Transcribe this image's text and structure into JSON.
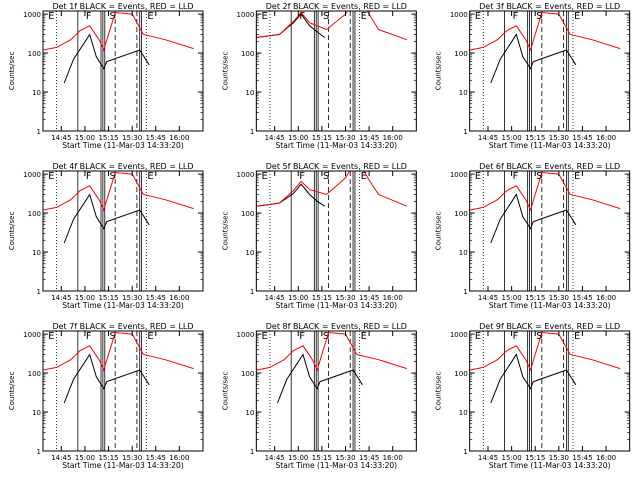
{
  "x_ticks": [
    "14:45",
    "15:00",
    "15:15",
    "15:30",
    "15:45",
    "16:00"
  ],
  "y_ticks": [
    "1",
    "10",
    "100",
    "1000"
  ],
  "ylabel": "Counts/sec",
  "xlabel": "Start Time (11-Mar-03 14:33:20)",
  "colors": {
    "events": "#000000",
    "lld": "#ff0000"
  },
  "chart_data": [
    {
      "type": "line",
      "title": "Det 1f BLACK = Events, RED = LLD",
      "markers": [
        "E",
        "F",
        "S",
        "E"
      ],
      "series": [
        {
          "name": "Events",
          "values": [
            [
              14.78,
              17
            ],
            [
              14.88,
              70
            ],
            [
              14.97,
              150
            ],
            [
              15.05,
              300
            ],
            [
              15.12,
              80
            ],
            [
              15.2,
              40
            ],
            [
              15.23,
              60
            ],
            [
              15.58,
              120
            ],
            [
              15.68,
              50
            ]
          ]
        },
        {
          "name": "LLD",
          "values": [
            [
              14.56,
              120
            ],
            [
              14.7,
              140
            ],
            [
              14.85,
              220
            ],
            [
              14.95,
              380
            ],
            [
              15.05,
              500
            ],
            [
              15.15,
              220
            ],
            [
              15.2,
              120
            ],
            [
              15.32,
              1100
            ],
            [
              15.5,
              1000
            ],
            [
              15.62,
              300
            ],
            [
              15.85,
              220
            ],
            [
              16.15,
              130
            ]
          ]
        }
      ]
    },
    {
      "type": "line",
      "title": "Det 2f BLACK = Events, RED = LLD",
      "markers": [
        "E",
        "F",
        "S",
        "E"
      ],
      "series": [
        {
          "name": "Events",
          "values": [
            [
              14.56,
              250
            ],
            [
              14.8,
              300
            ],
            [
              14.95,
              600
            ],
            [
              15.03,
              1000
            ],
            [
              15.12,
              500
            ],
            [
              15.2,
              350
            ],
            [
              15.28,
              250
            ]
          ]
        },
        {
          "name": "LLD",
          "values": [
            [
              14.56,
              250
            ],
            [
              14.8,
              300
            ],
            [
              14.95,
              650
            ],
            [
              15.03,
              1100
            ],
            [
              15.12,
              600
            ],
            [
              15.3,
              400
            ],
            [
              15.5,
              1000
            ],
            [
              15.62,
              3000
            ],
            [
              15.75,
              1000
            ],
            [
              15.85,
              400
            ],
            [
              16.15,
              220
            ]
          ]
        }
      ]
    },
    {
      "type": "line",
      "title": "Det 3f BLACK = Events, RED = LLD",
      "markers": [
        "E",
        "F",
        "S",
        "E"
      ],
      "series": [
        {
          "name": "Events",
          "values": [
            [
              14.78,
              17
            ],
            [
              14.88,
              70
            ],
            [
              14.97,
              150
            ],
            [
              15.05,
              300
            ],
            [
              15.12,
              80
            ],
            [
              15.2,
              40
            ],
            [
              15.23,
              60
            ],
            [
              15.58,
              120
            ],
            [
              15.68,
              50
            ]
          ]
        },
        {
          "name": "LLD",
          "values": [
            [
              14.56,
              120
            ],
            [
              14.7,
              140
            ],
            [
              14.85,
              220
            ],
            [
              14.95,
              380
            ],
            [
              15.05,
              500
            ],
            [
              15.15,
              220
            ],
            [
              15.2,
              120
            ],
            [
              15.32,
              1100
            ],
            [
              15.5,
              1000
            ],
            [
              15.62,
              300
            ],
            [
              15.85,
              220
            ],
            [
              16.15,
              130
            ]
          ]
        }
      ]
    },
    {
      "type": "line",
      "title": "Det 4f BLACK = Events, RED = LLD",
      "markers": [
        "E",
        "F",
        "S",
        "E"
      ],
      "series": [
        {
          "name": "Events",
          "values": [
            [
              14.78,
              17
            ],
            [
              14.88,
              70
            ],
            [
              14.97,
              150
            ],
            [
              15.05,
              300
            ],
            [
              15.12,
              80
            ],
            [
              15.2,
              40
            ],
            [
              15.23,
              60
            ],
            [
              15.58,
              120
            ],
            [
              15.68,
              50
            ]
          ]
        },
        {
          "name": "LLD",
          "values": [
            [
              14.56,
              120
            ],
            [
              14.7,
              140
            ],
            [
              14.85,
              220
            ],
            [
              14.95,
              380
            ],
            [
              15.05,
              500
            ],
            [
              15.15,
              220
            ],
            [
              15.2,
              120
            ],
            [
              15.32,
              1100
            ],
            [
              15.5,
              1000
            ],
            [
              15.62,
              300
            ],
            [
              15.85,
              220
            ],
            [
              16.15,
              130
            ]
          ]
        }
      ]
    },
    {
      "type": "line",
      "title": "Det 5f BLACK = Events, RED = LLD",
      "markers": [
        "E",
        "F",
        "S",
        "E"
      ],
      "series": [
        {
          "name": "Events",
          "values": [
            [
              14.56,
              150
            ],
            [
              14.8,
              180
            ],
            [
              14.95,
              320
            ],
            [
              15.03,
              550
            ],
            [
              15.12,
              300
            ],
            [
              15.2,
              200
            ],
            [
              15.28,
              150
            ]
          ]
        },
        {
          "name": "LLD",
          "values": [
            [
              14.56,
              150
            ],
            [
              14.8,
              180
            ],
            [
              14.95,
              380
            ],
            [
              15.03,
              650
            ],
            [
              15.12,
              400
            ],
            [
              15.3,
              300
            ],
            [
              15.5,
              800
            ],
            [
              15.62,
              2500
            ],
            [
              15.75,
              700
            ],
            [
              15.85,
              300
            ],
            [
              16.15,
              150
            ]
          ]
        }
      ]
    },
    {
      "type": "line",
      "title": "Det 6f BLACK = Events, RED = LLD",
      "markers": [
        "E",
        "F",
        "S",
        "E"
      ],
      "series": [
        {
          "name": "Events",
          "values": [
            [
              14.78,
              17
            ],
            [
              14.88,
              70
            ],
            [
              14.97,
              150
            ],
            [
              15.05,
              300
            ],
            [
              15.12,
              80
            ],
            [
              15.2,
              40
            ],
            [
              15.23,
              60
            ],
            [
              15.58,
              120
            ],
            [
              15.68,
              50
            ]
          ]
        },
        {
          "name": "LLD",
          "values": [
            [
              14.56,
              120
            ],
            [
              14.7,
              140
            ],
            [
              14.85,
              220
            ],
            [
              14.95,
              380
            ],
            [
              15.05,
              500
            ],
            [
              15.15,
              220
            ],
            [
              15.2,
              120
            ],
            [
              15.32,
              1100
            ],
            [
              15.5,
              1000
            ],
            [
              15.62,
              300
            ],
            [
              15.85,
              220
            ],
            [
              16.15,
              130
            ]
          ]
        }
      ]
    },
    {
      "type": "line",
      "title": "Det 7f BLACK = Events, RED = LLD",
      "markers": [
        "E",
        "F",
        "S",
        "E"
      ],
      "series": [
        {
          "name": "Events",
          "values": [
            [
              14.78,
              17
            ],
            [
              14.88,
              70
            ],
            [
              14.97,
              150
            ],
            [
              15.05,
              300
            ],
            [
              15.12,
              80
            ],
            [
              15.2,
              40
            ],
            [
              15.23,
              60
            ],
            [
              15.58,
              120
            ],
            [
              15.68,
              50
            ]
          ]
        },
        {
          "name": "LLD",
          "values": [
            [
              14.56,
              120
            ],
            [
              14.7,
              140
            ],
            [
              14.85,
              220
            ],
            [
              14.95,
              380
            ],
            [
              15.05,
              500
            ],
            [
              15.15,
              220
            ],
            [
              15.2,
              120
            ],
            [
              15.32,
              1100
            ],
            [
              15.5,
              1000
            ],
            [
              15.62,
              300
            ],
            [
              15.85,
              220
            ],
            [
              16.15,
              130
            ]
          ]
        }
      ]
    },
    {
      "type": "line",
      "title": "Det 8f BLACK = Events, RED = LLD",
      "markers": [
        "E",
        "F",
        "S",
        "E"
      ],
      "series": [
        {
          "name": "Events",
          "values": [
            [
              14.78,
              17
            ],
            [
              14.88,
              70
            ],
            [
              14.97,
              150
            ],
            [
              15.05,
              300
            ],
            [
              15.12,
              80
            ],
            [
              15.2,
              40
            ],
            [
              15.23,
              60
            ],
            [
              15.58,
              120
            ],
            [
              15.68,
              50
            ]
          ]
        },
        {
          "name": "LLD",
          "values": [
            [
              14.56,
              120
            ],
            [
              14.7,
              140
            ],
            [
              14.85,
              220
            ],
            [
              14.95,
              380
            ],
            [
              15.05,
              500
            ],
            [
              15.15,
              220
            ],
            [
              15.2,
              120
            ],
            [
              15.32,
              1100
            ],
            [
              15.5,
              1000
            ],
            [
              15.62,
              300
            ],
            [
              15.85,
              220
            ],
            [
              16.15,
              130
            ]
          ]
        }
      ]
    },
    {
      "type": "line",
      "title": "Det 9f BLACK = Events, RED = LLD",
      "markers": [
        "E",
        "F",
        "S",
        "E"
      ],
      "series": [
        {
          "name": "Events",
          "values": [
            [
              14.78,
              17
            ],
            [
              14.88,
              70
            ],
            [
              14.97,
              150
            ],
            [
              15.05,
              300
            ],
            [
              15.12,
              80
            ],
            [
              15.2,
              40
            ],
            [
              15.23,
              60
            ],
            [
              15.58,
              120
            ],
            [
              15.68,
              50
            ]
          ]
        },
        {
          "name": "LLD",
          "values": [
            [
              14.56,
              120
            ],
            [
              14.7,
              140
            ],
            [
              14.85,
              220
            ],
            [
              14.95,
              380
            ],
            [
              15.05,
              500
            ],
            [
              15.15,
              220
            ],
            [
              15.2,
              120
            ],
            [
              15.32,
              1100
            ],
            [
              15.5,
              1000
            ],
            [
              15.62,
              300
            ],
            [
              15.85,
              220
            ],
            [
              16.15,
              130
            ]
          ]
        }
      ]
    }
  ]
}
